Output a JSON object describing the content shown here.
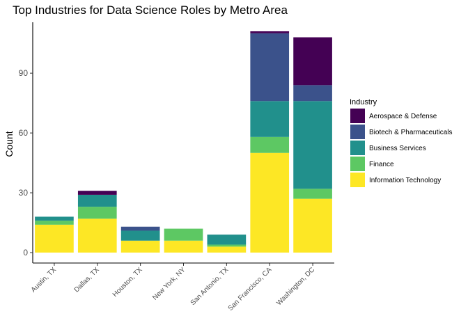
{
  "chart_data": {
    "type": "bar",
    "stacked": true,
    "title": "Top Industries for Data Science Roles by Metro Area",
    "xlabel": "",
    "ylabel": "Count",
    "ylim": [
      0,
      112
    ],
    "yticks": [
      0,
      30,
      60,
      90
    ],
    "grid": false,
    "legend_title": "Industry",
    "legend_position": "right",
    "categories": [
      "Austin, TX",
      "Dallas, TX",
      "Houston, TX",
      "New York, NY",
      "San Antonio, TX",
      "San Francisco, CA",
      "Washington, DC"
    ],
    "series": [
      {
        "name": "Aerospace & Defense",
        "color": "#440154",
        "values": [
          0,
          2,
          0,
          0,
          0,
          1,
          24
        ]
      },
      {
        "name": "Biotech & Pharmaceuticals",
        "color": "#3B528B",
        "values": [
          0,
          0,
          2,
          0,
          0,
          34,
          8
        ]
      },
      {
        "name": "Business Services",
        "color": "#21908C",
        "values": [
          2,
          6,
          5,
          0,
          5,
          18,
          44
        ]
      },
      {
        "name": "Finance",
        "color": "#5DC863",
        "values": [
          2,
          6,
          0,
          6,
          1,
          8,
          5
        ]
      },
      {
        "name": "Information Technology",
        "color": "#FDE725",
        "values": [
          14,
          17,
          6,
          6,
          3,
          50,
          27
        ]
      }
    ]
  }
}
